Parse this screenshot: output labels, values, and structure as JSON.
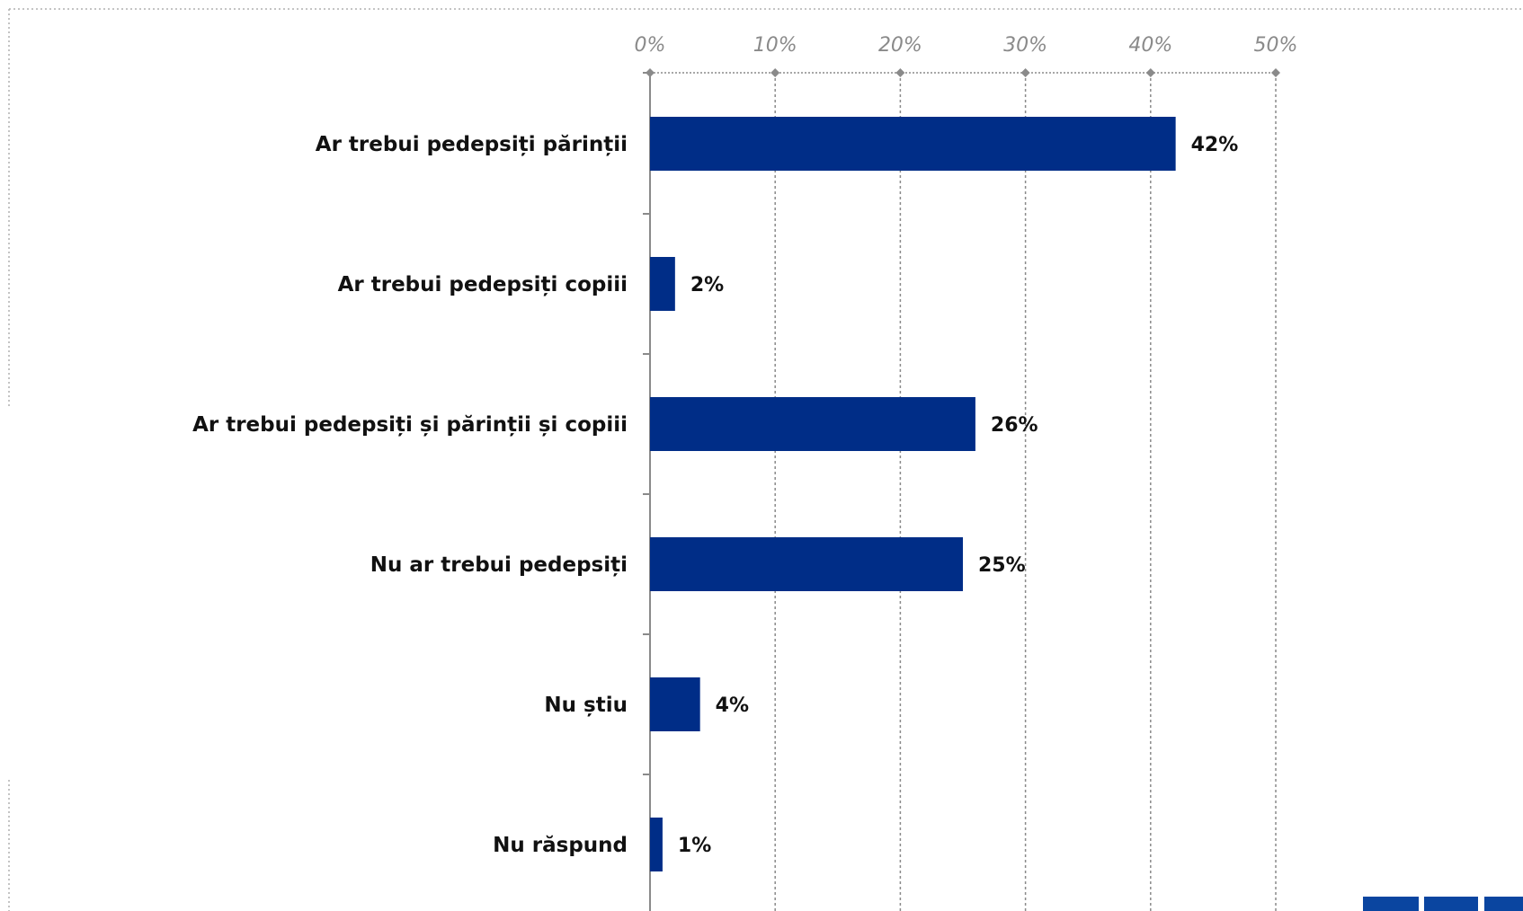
{
  "chart_data": {
    "type": "bar",
    "orientation": "horizontal",
    "categories": [
      "Ar trebui pedepsiți părinții",
      "Ar trebui pedepsiți copiii",
      "Ar trebui pedepsiți și părinții și copiii",
      "Nu ar trebui pedepsiți",
      "Nu știu",
      "Nu răspund"
    ],
    "values": [
      42,
      2,
      26,
      25,
      4,
      1
    ],
    "value_labels": [
      "42%",
      "2%",
      "26%",
      "25%",
      "4%",
      "1%"
    ],
    "xticks": [
      0,
      10,
      20,
      30,
      40,
      50
    ],
    "xtick_labels": [
      "0%",
      "10%",
      "20%",
      "30%",
      "40%",
      "50%"
    ],
    "xlim": [
      0,
      50
    ],
    "axis_position": "top",
    "grid": true,
    "bar_color": "#002d87"
  },
  "decor": {
    "badge_color": "#0a45a0"
  }
}
